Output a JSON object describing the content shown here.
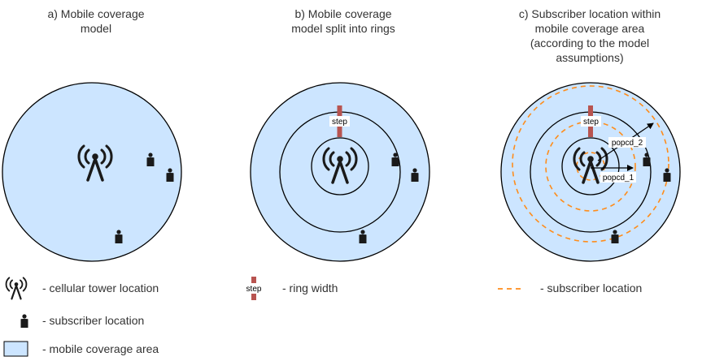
{
  "captions": {
    "a": "a) Mobile coverage\nmodel",
    "b": "b) Mobile coverage\nmodel split into rings",
    "c": "c) Subscriber location within\nmobile coverage area\n(according to the model\nassumptions)"
  },
  "labels": {
    "step": "step",
    "popcd_1": "popcd_1",
    "popcd_2": "popcd_2"
  },
  "legend": {
    "tower": "- cellular tower location",
    "subscriber": "- subscriber location",
    "coverage": "- mobile coverage area",
    "ring_width": "- ring width",
    "subscriber_location": "- subscriber location",
    "step_marker": "step"
  },
  "colors": {
    "coverage_fill": "#cce5ff",
    "coverage_stroke": "#000000",
    "step_marker": "#b85450",
    "dashed_ring": "#ff8c1a",
    "icon": "#1a1a1a"
  }
}
